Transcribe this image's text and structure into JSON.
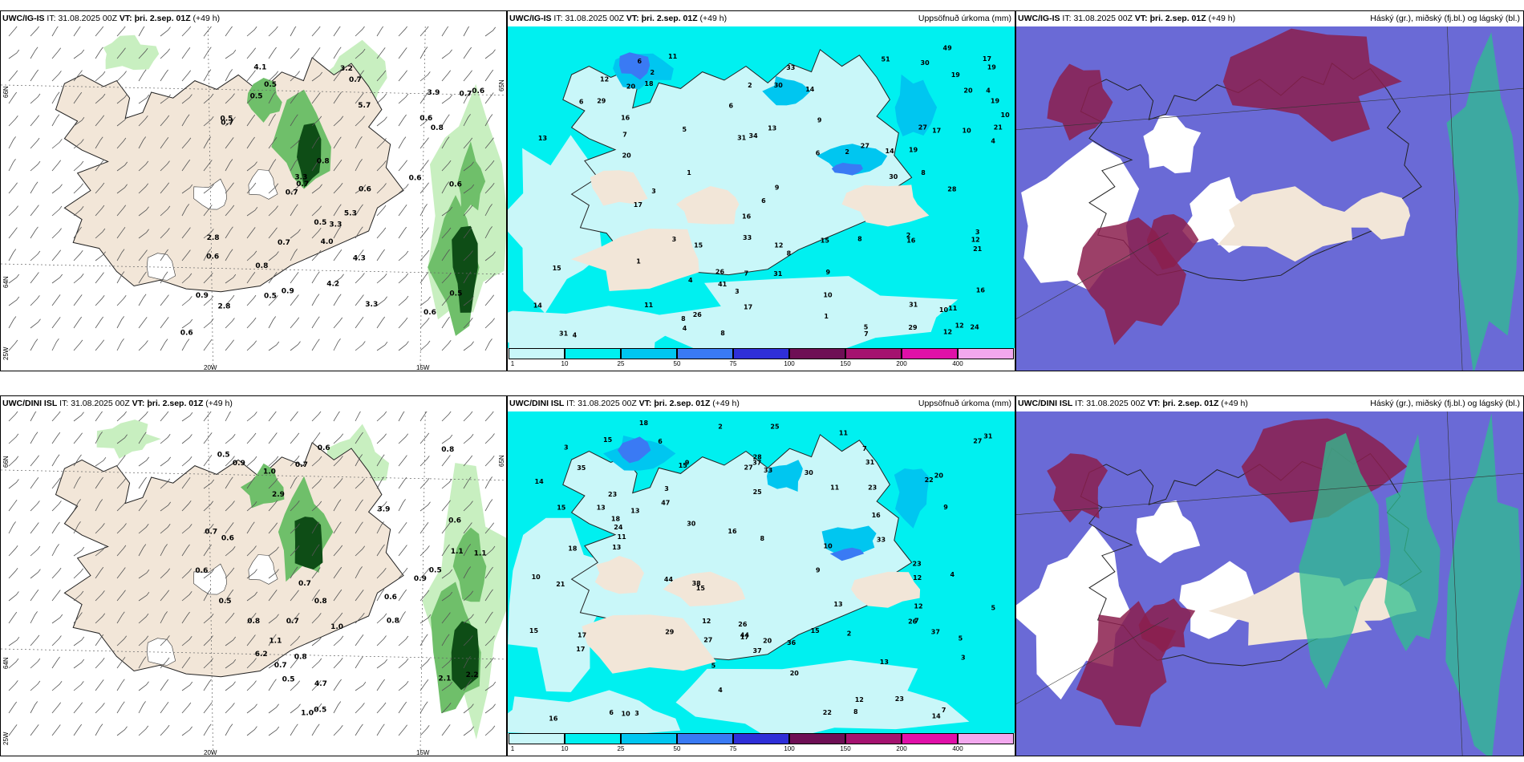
{
  "panels": [
    {
      "id": "p1",
      "kind": "wind",
      "title_model": "UWC/IG-IS",
      "title_it_label": "IT:",
      "title_it": "31.08.2025 00Z",
      "title_vt_label": "VT:",
      "title_vt": "þri. 2.sep. 01Z",
      "title_lead": "(+49 h)",
      "right_title": "",
      "grid_labels": {
        "left_top": "66N",
        "left_mid": "64N",
        "left_bot": "25W",
        "bottom_a": "20W",
        "bottom_b": "15W",
        "right_top": "65N"
      },
      "values": [
        "0.5",
        "0.6",
        "0.7",
        "0.6",
        "0.6",
        "0.7",
        "0.6",
        "0.5",
        "0.7",
        "0.7",
        "0.6",
        "0.5",
        "0.5",
        "0.6",
        "0.9",
        "0.7",
        "2.8",
        "0.8",
        "3.2",
        "3.3",
        "2.8",
        "3.3",
        "0.6",
        "0.8",
        "0.5",
        "0.5",
        "0.8",
        "0.9",
        "0.7",
        "3.9",
        "5.3",
        "4.0",
        "4.2",
        "4.1",
        "4.3",
        "5.7",
        "3.3",
        "0.6"
      ]
    },
    {
      "id": "p2",
      "kind": "precip",
      "title_model": "UWC/IG-IS",
      "title_it_label": "IT:",
      "title_it": "31.08.2025 00Z",
      "title_vt_label": "VT:",
      "title_vt": "þri. 2.sep. 01Z",
      "title_lead": "(+49 h)",
      "right_title": "Uppsöfnuð úrkoma (mm)",
      "values": [
        "18",
        "16",
        "14",
        "29",
        "33",
        "31",
        "21",
        "17",
        "41",
        "24",
        "26",
        "29",
        "34",
        "31",
        "19",
        "19",
        "16",
        "17",
        "12",
        "30",
        "12",
        "27",
        "31",
        "26",
        "30",
        "49",
        "19",
        "13",
        "20",
        "21",
        "17",
        "28",
        "14",
        "8",
        "20",
        "9",
        "17",
        "30",
        "16",
        "20",
        "12",
        "14",
        "11",
        "33",
        "16",
        "19",
        "51",
        "27",
        "12",
        "15",
        "7",
        "12",
        "10",
        "8",
        "15",
        "11",
        "15",
        "2",
        "2",
        "3",
        "8",
        "5",
        "4",
        "6",
        "3",
        "4",
        "9",
        "6",
        "8",
        "10",
        "7",
        "6",
        "5",
        "10",
        "4",
        "4",
        "3",
        "2",
        "1",
        "1",
        "2",
        "1",
        "31",
        "13",
        "10",
        "11",
        "6",
        "9",
        "7",
        "8",
        "3",
        "6",
        "4"
      ],
      "colorbar": {
        "ticks": [
          "1",
          "10",
          "25",
          "50",
          "75",
          "100",
          "150",
          "200",
          "400"
        ],
        "colors": [
          "#c9f7f9",
          "#00f0f0",
          "#00c6f0",
          "#3a7af4",
          "#2f2fd8",
          "#6e0f55",
          "#a4126f",
          "#e010a8",
          "#f2a8ee"
        ]
      }
    },
    {
      "id": "p3",
      "kind": "cloud",
      "title_model": "UWC/IG-IS",
      "title_it_label": "IT:",
      "title_it": "31.08.2025 00Z",
      "title_vt_label": "VT:",
      "title_vt": "þri. 2.sep. 01Z",
      "title_lead": "(+49 h)",
      "right_title": "Háský (gr.), miðský (fj.bl.) og lágský (bl.)"
    },
    {
      "id": "p4",
      "kind": "wind",
      "title_model": "UWC/DINI ISL",
      "title_it_label": "IT:",
      "title_it": "31.08.2025 00Z",
      "title_vt_label": "VT:",
      "title_vt": "þri. 2.sep. 01Z",
      "title_lead": "(+49 h)",
      "right_title": "",
      "grid_labels": {
        "left_top": "66N",
        "left_mid": "64N",
        "left_bot": "25W",
        "bottom_a": "20W",
        "bottom_b": "15W",
        "right_top": "65N"
      },
      "values": [
        "0.7",
        "1.0",
        "0.8",
        "0.7",
        "1.0",
        "0.6",
        "0.7",
        "0.8",
        "3.9",
        "4.7",
        "6.2",
        "2.1",
        "0.5",
        "0.5",
        "0.5",
        "0.8",
        "1.1",
        "1.1",
        "0.6",
        "0.6",
        "1.0",
        "0.9",
        "2.9",
        "0.6",
        "1.1",
        "0.5",
        "0.6",
        "0.7",
        "2.2",
        "0.8",
        "0.5",
        "0.7",
        "0.8",
        "0.9"
      ]
    },
    {
      "id": "p5",
      "kind": "precip",
      "title_model": "UWC/DINI ISL",
      "title_it_label": "IT:",
      "title_it": "31.08.2025 00Z",
      "title_vt_label": "VT:",
      "title_vt": "þri. 2.sep. 01Z",
      "title_lead": "(+49 h)",
      "right_title": "Uppsöfnuð úrkoma (mm)",
      "values": [
        "12",
        "18",
        "16",
        "13",
        "31",
        "11",
        "11",
        "16",
        "33",
        "44",
        "23",
        "27",
        "27",
        "20",
        "17",
        "15",
        "10",
        "29",
        "26",
        "38",
        "18",
        "18",
        "21",
        "22",
        "47",
        "17",
        "23",
        "15",
        "12",
        "14",
        "13",
        "33",
        "31",
        "37",
        "25",
        "15",
        "24",
        "13",
        "16",
        "17",
        "37",
        "23",
        "30",
        "22",
        "28",
        "27",
        "25",
        "30",
        "20",
        "35",
        "11",
        "9",
        "15",
        "7",
        "15",
        "8",
        "9",
        "26",
        "44",
        "37",
        "36",
        "13",
        "14",
        "23",
        "12",
        "15",
        "10",
        "5",
        "3",
        "4",
        "3",
        "3",
        "2",
        "20",
        "12",
        "13",
        "2",
        "5",
        "6",
        "6",
        "4",
        "3",
        "7",
        "5",
        "10",
        "9",
        "8",
        "7"
      ],
      "colorbar": {
        "ticks": [
          "1",
          "10",
          "25",
          "50",
          "75",
          "100",
          "150",
          "200",
          "400"
        ],
        "colors": [
          "#c9f7f9",
          "#00f0f0",
          "#00c6f0",
          "#3a7af4",
          "#2f2fd8",
          "#6e0f55",
          "#a4126f",
          "#e010a8",
          "#f2a8ee"
        ]
      }
    },
    {
      "id": "p6",
      "kind": "cloud",
      "title_model": "UWC/DINI ISL",
      "title_it_label": "IT:",
      "title_it": "31.08.2025 00Z",
      "title_vt_label": "VT:",
      "title_vt": "þri. 2.sep. 01Z",
      "title_lead": "(+49 h)",
      "right_title": "Háský (gr.), miðský (fj.bl.) og lágský (bl.)"
    }
  ],
  "colors": {
    "land": "#f2e6d8",
    "sea_wind": "#ffffff",
    "sea_precip": "#c9f7f9",
    "cloud_low": "#6a6ad6",
    "cloud_mid": "#8b1e4e",
    "cloud_high": "#2fbf8f",
    "green_light": "#c8efc0",
    "green_mid": "#6fbf6a",
    "green_dark": "#0e4d16"
  }
}
